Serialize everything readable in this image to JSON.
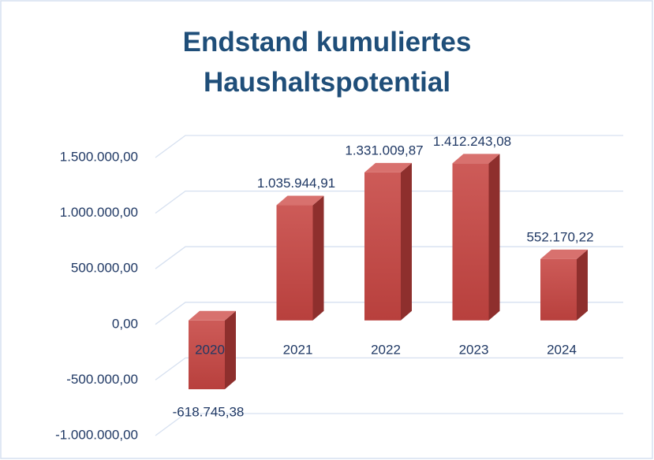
{
  "chart_data": {
    "type": "bar3d",
    "title": "Endstand kumuliertes Haushaltspotential",
    "categories": [
      "2020",
      "2021",
      "2022",
      "2023",
      "2024"
    ],
    "values": [
      -618745.38,
      1035944.91,
      1331009.87,
      1412243.08,
      552170.22
    ],
    "value_labels": [
      "-618.745,38",
      "1.035.944,91",
      "1.331.009,87",
      "1.412.243,08",
      "552.170,22"
    ],
    "color": "#c0504d",
    "ylim": [
      -1000000,
      1500000
    ],
    "yticks": [
      {
        "value": -1000000,
        "label": "-1.000.000,00"
      },
      {
        "value": -500000,
        "label": "-500.000,00"
      },
      {
        "value": 0,
        "label": "0,00"
      },
      {
        "value": 500000,
        "label": "500.000,00"
      },
      {
        "value": 1000000,
        "label": "1.000.000,00"
      },
      {
        "value": 1500000,
        "label": "1.500.000,00"
      }
    ],
    "grid": true
  }
}
